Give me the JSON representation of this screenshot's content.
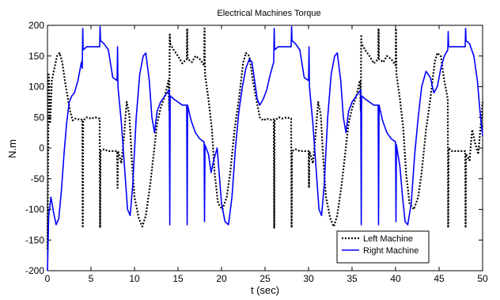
{
  "chart_data": {
    "type": "line",
    "title": "Electrical Machines Torque",
    "xlabel": "t (sec)",
    "ylabel": "N.m",
    "xlim": [
      0,
      50
    ],
    "ylim": [
      -200,
      200
    ],
    "xticks": [
      0,
      5,
      10,
      15,
      20,
      25,
      30,
      35,
      40,
      45,
      50
    ],
    "yticks": [
      -200,
      -150,
      -100,
      -50,
      0,
      50,
      100,
      150,
      200
    ],
    "grid": false,
    "legend_position": "bottom-right",
    "series": [
      {
        "name": "Left Machine",
        "color": "#000000",
        "style": "dotted",
        "points": [
          [
            0,
            -165
          ],
          [
            0.15,
            120
          ],
          [
            0.3,
            40
          ],
          [
            0.5,
            110
          ],
          [
            0.8,
            130
          ],
          [
            1.1,
            150
          ],
          [
            1.4,
            155
          ],
          [
            1.7,
            140
          ],
          [
            2,
            110
          ],
          [
            2.3,
            85
          ],
          [
            2.6,
            60
          ],
          [
            2.9,
            45
          ],
          [
            3.2,
            48
          ],
          [
            3.5,
            47
          ],
          [
            3.8,
            46
          ],
          [
            4,
            47
          ],
          [
            4.05,
            -130
          ],
          [
            4.1,
            45
          ],
          [
            4.5,
            50
          ],
          [
            5,
            48
          ],
          [
            5.5,
            50
          ],
          [
            6.0,
            48
          ],
          [
            6.05,
            -130
          ],
          [
            6.1,
            -5
          ],
          [
            6.5,
            -2
          ],
          [
            7,
            -5
          ],
          [
            7.5,
            -5
          ],
          [
            8.0,
            -5
          ],
          [
            8.05,
            -65
          ],
          [
            8.1,
            -5
          ],
          [
            8.5,
            -25
          ],
          [
            8.8,
            20
          ],
          [
            9.1,
            75
          ],
          [
            9.4,
            55
          ],
          [
            9.7,
            -20
          ],
          [
            10,
            -80
          ],
          [
            10.5,
            -115
          ],
          [
            10.9,
            -128
          ],
          [
            11.3,
            -110
          ],
          [
            11.8,
            -60
          ],
          [
            12.2,
            -10
          ],
          [
            12.6,
            40
          ],
          [
            13,
            65
          ],
          [
            13.5,
            85
          ],
          [
            13.9,
            110
          ],
          [
            14.0,
            60
          ],
          [
            14.05,
            185
          ],
          [
            14.1,
            170
          ],
          [
            14.5,
            160
          ],
          [
            15,
            150
          ],
          [
            15.5,
            138
          ],
          [
            16.0,
            145
          ],
          [
            16.05,
            195
          ],
          [
            16.1,
            145
          ],
          [
            16.6,
            140
          ],
          [
            17,
            150
          ],
          [
            17.5,
            145
          ],
          [
            18.0,
            135
          ],
          [
            18.05,
            195
          ],
          [
            18.1,
            120
          ],
          [
            18.5,
            80
          ],
          [
            18.9,
            30
          ],
          [
            19.2,
            -40
          ],
          [
            19.6,
            -90
          ],
          [
            20.1,
            -100
          ],
          [
            20.6,
            -80
          ],
          [
            21,
            -40
          ],
          [
            21.5,
            30
          ],
          [
            22,
            80
          ],
          [
            22.5,
            140
          ],
          [
            22.8,
            155
          ],
          [
            23.2,
            150
          ],
          [
            23.6,
            110
          ],
          [
            24,
            80
          ],
          [
            24.4,
            50
          ],
          [
            24.8,
            45
          ],
          [
            25.2,
            48
          ],
          [
            25.6,
            46
          ],
          [
            26,
            47
          ],
          [
            26.05,
            -130
          ],
          [
            26.1,
            45
          ],
          [
            26.6,
            50
          ],
          [
            27,
            48
          ],
          [
            27.5,
            50
          ],
          [
            28,
            48
          ],
          [
            28.05,
            -130
          ],
          [
            28.1,
            -5
          ],
          [
            28.5,
            -2
          ],
          [
            29,
            -5
          ],
          [
            29.5,
            -5
          ],
          [
            30,
            -5
          ],
          [
            30.05,
            -65
          ],
          [
            30.1,
            -5
          ],
          [
            30.5,
            -25
          ],
          [
            30.8,
            20
          ],
          [
            31.1,
            75
          ],
          [
            31.4,
            55
          ],
          [
            31.7,
            -20
          ],
          [
            32,
            -80
          ],
          [
            32.5,
            -115
          ],
          [
            32.9,
            -128
          ],
          [
            33.3,
            -110
          ],
          [
            33.8,
            -60
          ],
          [
            34.2,
            -10
          ],
          [
            34.6,
            40
          ],
          [
            35,
            65
          ],
          [
            35.5,
            85
          ],
          [
            35.9,
            110
          ],
          [
            36,
            60
          ],
          [
            36.05,
            185
          ],
          [
            36.1,
            170
          ],
          [
            36.5,
            160
          ],
          [
            37,
            150
          ],
          [
            37.5,
            138
          ],
          [
            38,
            145
          ],
          [
            38.05,
            195
          ],
          [
            38.1,
            145
          ],
          [
            38.6,
            140
          ],
          [
            39,
            150
          ],
          [
            39.5,
            145
          ],
          [
            40,
            135
          ],
          [
            40.05,
            195
          ],
          [
            40.1,
            120
          ],
          [
            40.5,
            80
          ],
          [
            40.9,
            30
          ],
          [
            41.2,
            -40
          ],
          [
            41.6,
            -90
          ],
          [
            42.1,
            -100
          ],
          [
            42.6,
            -80
          ],
          [
            43,
            -40
          ],
          [
            43.5,
            30
          ],
          [
            44,
            80
          ],
          [
            44.5,
            140
          ],
          [
            44.8,
            155
          ],
          [
            45.2,
            150
          ],
          [
            45.6,
            110
          ],
          [
            46,
            80
          ],
          [
            46.05,
            -130
          ],
          [
            46.1,
            0
          ],
          [
            46.5,
            -5
          ],
          [
            47,
            -5
          ],
          [
            47.5,
            -5
          ],
          [
            48,
            -5
          ],
          [
            48.05,
            -130
          ],
          [
            48.1,
            -10
          ],
          [
            48.5,
            -20
          ],
          [
            48.8,
            30
          ],
          [
            49.1,
            10
          ],
          [
            49.5,
            -10
          ],
          [
            49.8,
            40
          ],
          [
            50,
            75
          ]
        ]
      },
      {
        "name": "Right Machine",
        "color": "#0000ff",
        "style": "solid",
        "points": [
          [
            0,
            -200
          ],
          [
            0.15,
            -110
          ],
          [
            0.4,
            -80
          ],
          [
            0.7,
            -105
          ],
          [
            1,
            -125
          ],
          [
            1.3,
            -115
          ],
          [
            1.6,
            -70
          ],
          [
            1.9,
            -10
          ],
          [
            2.2,
            40
          ],
          [
            2.5,
            75
          ],
          [
            2.8,
            85
          ],
          [
            3.1,
            90
          ],
          [
            3.5,
            110
          ],
          [
            3.9,
            140
          ],
          [
            4.0,
            130
          ],
          [
            4.05,
            195
          ],
          [
            4.1,
            160
          ],
          [
            4.5,
            165
          ],
          [
            5,
            165
          ],
          [
            5.5,
            165
          ],
          [
            6.0,
            165
          ],
          [
            6.05,
            198
          ],
          [
            6.1,
            175
          ],
          [
            6.5,
            170
          ],
          [
            7,
            160
          ],
          [
            7.5,
            115
          ],
          [
            8.0,
            110
          ],
          [
            8.05,
            165
          ],
          [
            8.1,
            100
          ],
          [
            8.5,
            40
          ],
          [
            8.9,
            -40
          ],
          [
            9.2,
            -100
          ],
          [
            9.5,
            -110
          ],
          [
            9.8,
            -60
          ],
          [
            10.2,
            50
          ],
          [
            10.6,
            120
          ],
          [
            11,
            150
          ],
          [
            11.3,
            155
          ],
          [
            11.7,
            110
          ],
          [
            12,
            50
          ],
          [
            12.3,
            25
          ],
          [
            12.6,
            60
          ],
          [
            13,
            75
          ],
          [
            13.5,
            85
          ],
          [
            14,
            95
          ],
          [
            14.05,
            -125
          ],
          [
            14.1,
            85
          ],
          [
            14.5,
            80
          ],
          [
            15,
            75
          ],
          [
            15.5,
            70
          ],
          [
            16,
            70
          ],
          [
            16.05,
            -125
          ],
          [
            16.1,
            70
          ],
          [
            16.5,
            45
          ],
          [
            17,
            25
          ],
          [
            17.5,
            15
          ],
          [
            18,
            10
          ],
          [
            18.05,
            -120
          ],
          [
            18.1,
            5
          ],
          [
            18.5,
            -10
          ],
          [
            18.8,
            -40
          ],
          [
            19.1,
            -20
          ],
          [
            19.5,
            0
          ],
          [
            20,
            -90
          ],
          [
            20.4,
            -120
          ],
          [
            20.8,
            -125
          ],
          [
            21.2,
            -80
          ],
          [
            21.6,
            0
          ],
          [
            22,
            60
          ],
          [
            22.4,
            100
          ],
          [
            22.8,
            130
          ],
          [
            23.2,
            145
          ],
          [
            23.5,
            140
          ],
          [
            23.8,
            110
          ],
          [
            24.1,
            80
          ],
          [
            24.4,
            70
          ],
          [
            24.8,
            80
          ],
          [
            25.2,
            95
          ],
          [
            25.6,
            120
          ],
          [
            26,
            140
          ],
          [
            26.05,
            195
          ],
          [
            26.1,
            160
          ],
          [
            26.5,
            165
          ],
          [
            27,
            165
          ],
          [
            27.5,
            165
          ],
          [
            28,
            165
          ],
          [
            28.05,
            198
          ],
          [
            28.1,
            175
          ],
          [
            28.5,
            170
          ],
          [
            29,
            160
          ],
          [
            29.5,
            115
          ],
          [
            30,
            110
          ],
          [
            30.05,
            165
          ],
          [
            30.1,
            100
          ],
          [
            30.5,
            40
          ],
          [
            30.9,
            -40
          ],
          [
            31.2,
            -100
          ],
          [
            31.5,
            -110
          ],
          [
            31.8,
            -60
          ],
          [
            32.2,
            50
          ],
          [
            32.6,
            120
          ],
          [
            33,
            150
          ],
          [
            33.3,
            155
          ],
          [
            33.7,
            110
          ],
          [
            34,
            50
          ],
          [
            34.3,
            25
          ],
          [
            34.6,
            60
          ],
          [
            35,
            75
          ],
          [
            35.5,
            85
          ],
          [
            36,
            95
          ],
          [
            36.05,
            -125
          ],
          [
            36.1,
            85
          ],
          [
            36.5,
            80
          ],
          [
            37,
            75
          ],
          [
            37.5,
            70
          ],
          [
            38,
            70
          ],
          [
            38.05,
            -125
          ],
          [
            38.1,
            70
          ],
          [
            38.5,
            45
          ],
          [
            39,
            25
          ],
          [
            39.5,
            15
          ],
          [
            40,
            10
          ],
          [
            40.05,
            -120
          ],
          [
            40.1,
            5
          ],
          [
            40.5,
            -30
          ],
          [
            40.8,
            -80
          ],
          [
            41.1,
            -120
          ],
          [
            41.4,
            -125
          ],
          [
            41.8,
            -90
          ],
          [
            42.2,
            -10
          ],
          [
            42.6,
            50
          ],
          [
            43,
            100
          ],
          [
            43.5,
            125
          ],
          [
            44,
            115
          ],
          [
            44.4,
            90
          ],
          [
            44.8,
            100
          ],
          [
            45.2,
            130
          ],
          [
            45.6,
            150
          ],
          [
            46,
            160
          ],
          [
            46.05,
            190
          ],
          [
            46.1,
            165
          ],
          [
            46.5,
            165
          ],
          [
            47,
            165
          ],
          [
            47.5,
            165
          ],
          [
            48,
            165
          ],
          [
            48.05,
            195
          ],
          [
            48.1,
            175
          ],
          [
            48.5,
            170
          ],
          [
            49,
            150
          ],
          [
            49.4,
            110
          ],
          [
            49.7,
            60
          ],
          [
            50,
            20
          ]
        ]
      }
    ]
  }
}
